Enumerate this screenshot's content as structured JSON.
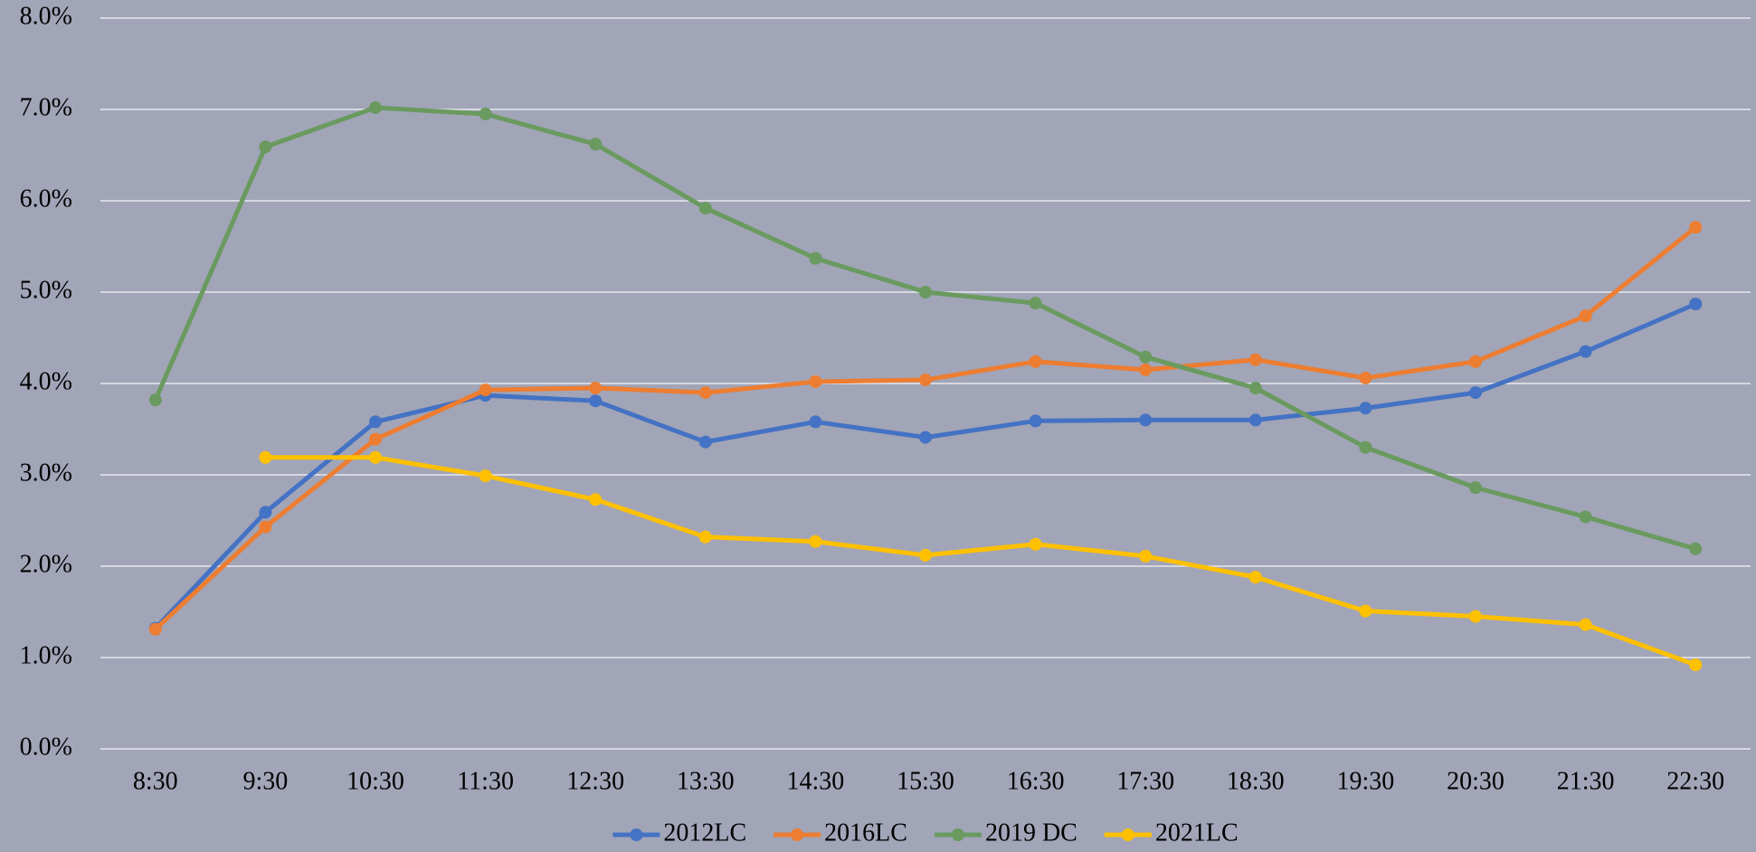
{
  "chart_data": {
    "type": "line",
    "categories": [
      "8:30",
      "9:30",
      "10:30",
      "11:30",
      "12:30",
      "13:30",
      "14:30",
      "15:30",
      "16:30",
      "17:30",
      "18:30",
      "19:30",
      "20:30",
      "21:30",
      "22:30"
    ],
    "series": [
      {
        "name": "2012LC",
        "color": "#4472c4",
        "values": [
          1.32,
          2.59,
          3.58,
          3.87,
          3.81,
          3.36,
          3.58,
          3.41,
          3.59,
          3.6,
          3.6,
          3.73,
          3.9,
          4.35,
          4.87
        ]
      },
      {
        "name": "2016LC",
        "color": "#ed7d31",
        "values": [
          1.31,
          2.43,
          3.39,
          3.93,
          3.95,
          3.9,
          4.02,
          4.04,
          4.24,
          4.15,
          4.26,
          4.06,
          4.24,
          4.74,
          5.71
        ]
      },
      {
        "name": "2019 DC",
        "color": "#6a9a5f",
        "values": [
          3.82,
          6.59,
          7.02,
          6.95,
          6.62,
          5.92,
          5.37,
          5.0,
          4.88,
          4.29,
          3.95,
          3.3,
          2.86,
          2.54,
          2.19
        ]
      },
      {
        "name": "2021LC",
        "color": "#ffc000",
        "values": [
          null,
          3.19,
          3.19,
          2.99,
          2.73,
          2.32,
          2.27,
          2.12,
          2.24,
          2.11,
          1.88,
          1.51,
          1.45,
          1.36,
          0.92
        ]
      }
    ],
    "ylim": [
      0,
      8
    ],
    "yticks": [
      {
        "value": 0,
        "label": "0.0%"
      },
      {
        "value": 1,
        "label": "1.0%"
      },
      {
        "value": 2,
        "label": "2.0%"
      },
      {
        "value": 3,
        "label": "3.0%"
      },
      {
        "value": 4,
        "label": "4.0%"
      },
      {
        "value": 5,
        "label": "5.0%"
      },
      {
        "value": 6,
        "label": "6.0%"
      },
      {
        "value": 7,
        "label": "7.0%"
      },
      {
        "value": 8,
        "label": "8.0%"
      }
    ],
    "grid": true,
    "legend": "bottom"
  }
}
